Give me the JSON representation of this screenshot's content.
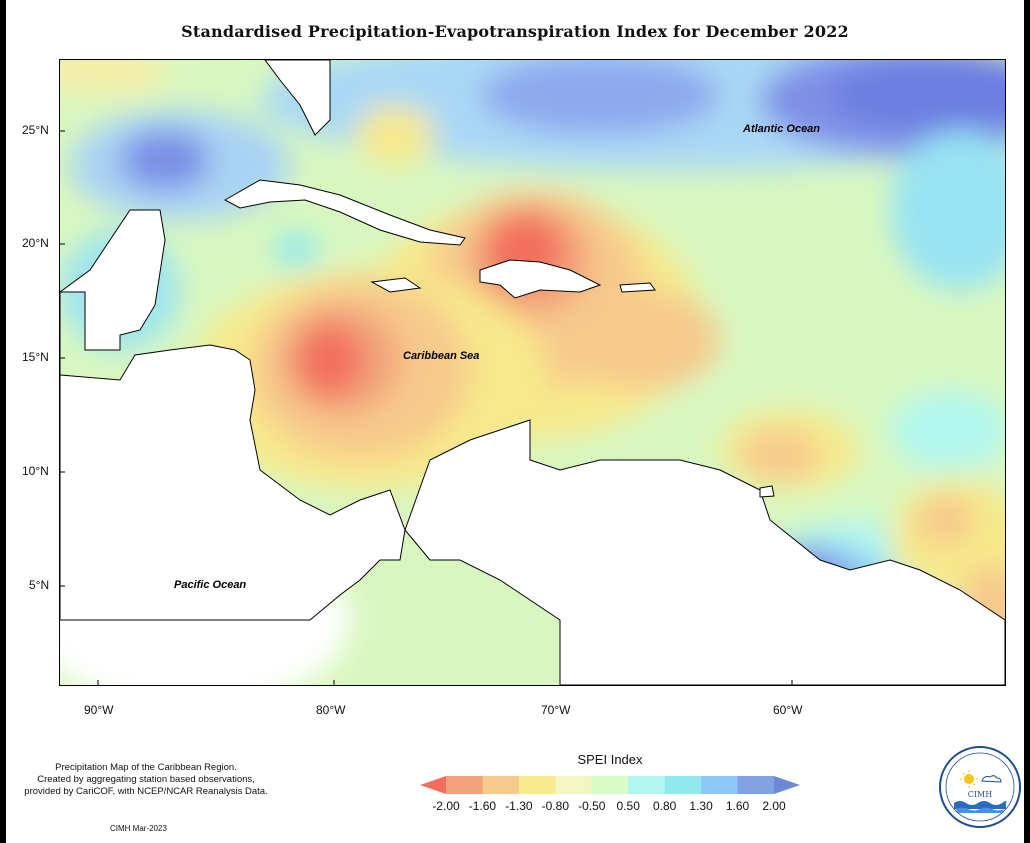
{
  "title": "Standardised Precipitation-Evapotranspiration Index for December 2022",
  "y_axis_labels": [
    "25°N",
    "20°N",
    "15°N",
    "10°N",
    "5°N"
  ],
  "x_axis_labels": [
    "90°W",
    "80°W",
    "70°W",
    "60°W"
  ],
  "places": {
    "atlantic": "Atlantic Ocean",
    "caribbean": "Caribbean Sea",
    "pacific": "Pacific Ocean"
  },
  "notes": {
    "line1": "Precipitation Map of the Caribbean Region.",
    "line2": "Created by aggregating station based observations,",
    "line3": "provided by CariCOF, with NCEP/NCAR Reanalysis Data.",
    "credit": "CIMH Mar-2023"
  },
  "legend": {
    "title": "SPEI Index",
    "ticks": [
      "-2.00",
      "-1.60",
      "-1.30",
      "-0.80",
      "-0.50",
      "0.50",
      "0.80",
      "1.30",
      "1.60",
      "2.00"
    ],
    "colors": [
      "#f26e5c",
      "#f2a27c",
      "#f7c98b",
      "#f7e98c",
      "#f3f5c5",
      "#d8fbc8",
      "#b2f7ef",
      "#8ee8ec",
      "#8cc8f5",
      "#7fa3e3",
      "#6a8ad3"
    ]
  },
  "logo": {
    "text": "CIMH"
  }
}
